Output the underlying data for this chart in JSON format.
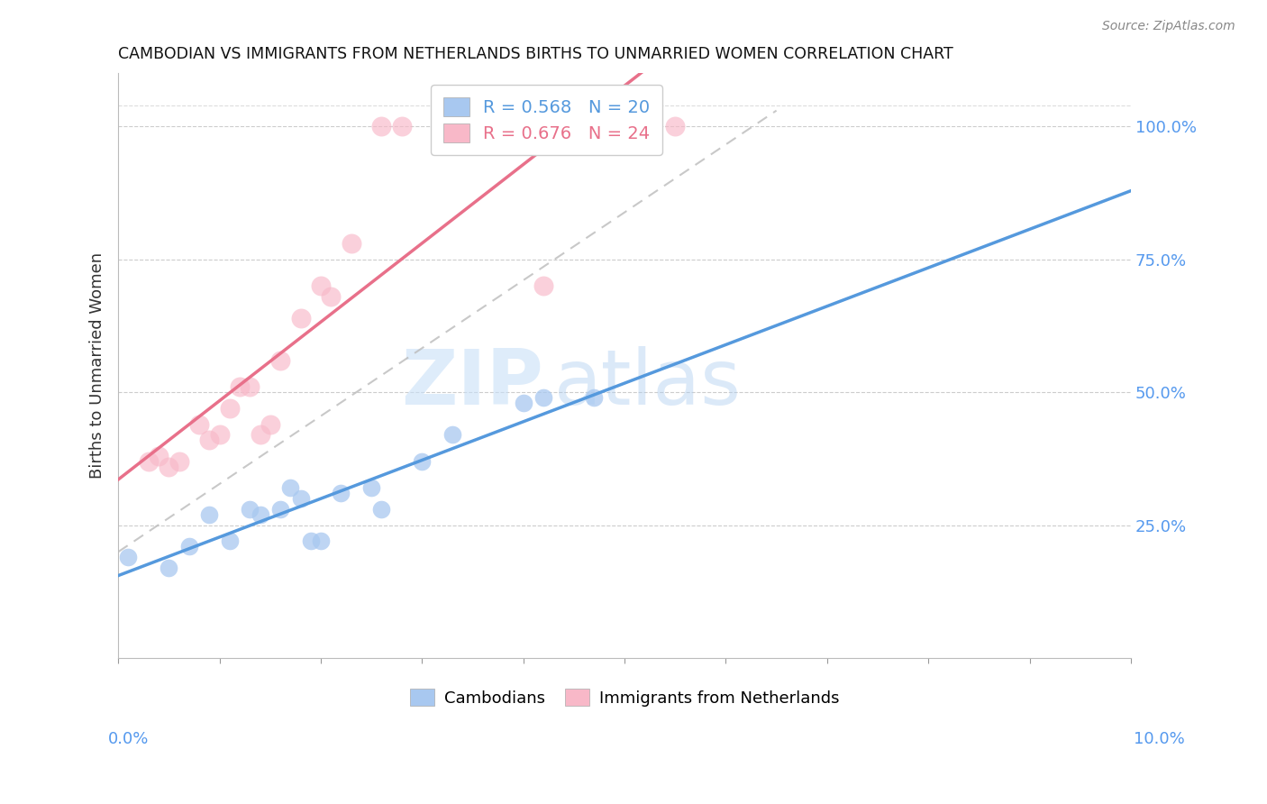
{
  "title": "CAMBODIAN VS IMMIGRANTS FROM NETHERLANDS BIRTHS TO UNMARRIED WOMEN CORRELATION CHART",
  "source": "Source: ZipAtlas.com",
  "ylabel": "Births to Unmarried Women",
  "watermark_zip": "ZIP",
  "watermark_atlas": "atlas",
  "blue_color": "#A8C8F0",
  "blue_line_color": "#5599DD",
  "pink_color": "#F8B8C8",
  "pink_line_color": "#E8708A",
  "legend_blue_r": "0.568",
  "legend_blue_n": "20",
  "legend_pink_r": "0.676",
  "legend_pink_n": "24",
  "cambodian_x": [
    0.001,
    0.005,
    0.007,
    0.009,
    0.011,
    0.013,
    0.014,
    0.016,
    0.017,
    0.018,
    0.019,
    0.02,
    0.022,
    0.025,
    0.026,
    0.03,
    0.033,
    0.04,
    0.042,
    0.047
  ],
  "cambodian_y": [
    0.19,
    0.17,
    0.21,
    0.27,
    0.22,
    0.28,
    0.27,
    0.28,
    0.32,
    0.3,
    0.22,
    0.22,
    0.31,
    0.32,
    0.28,
    0.37,
    0.42,
    0.48,
    0.49,
    0.49
  ],
  "netherlands_x": [
    0.003,
    0.004,
    0.005,
    0.006,
    0.008,
    0.009,
    0.01,
    0.011,
    0.012,
    0.013,
    0.014,
    0.015,
    0.016,
    0.018,
    0.02,
    0.021,
    0.023,
    0.026,
    0.028,
    0.032,
    0.038,
    0.042,
    0.05,
    0.055
  ],
  "netherlands_y": [
    0.37,
    0.38,
    0.36,
    0.37,
    0.44,
    0.41,
    0.42,
    0.47,
    0.51,
    0.51,
    0.42,
    0.44,
    0.56,
    0.64,
    0.7,
    0.68,
    0.78,
    1.0,
    1.0,
    1.0,
    1.0,
    0.7,
    1.0,
    1.0
  ],
  "xmin": 0.0,
  "xmax": 0.1,
  "ymin": 0.0,
  "ymax": 1.1,
  "ytick_vals": [
    0.25,
    0.5,
    0.75,
    1.0
  ],
  "ytick_labels": [
    "25.0%",
    "50.0%",
    "75.0%",
    "100.0%"
  ]
}
